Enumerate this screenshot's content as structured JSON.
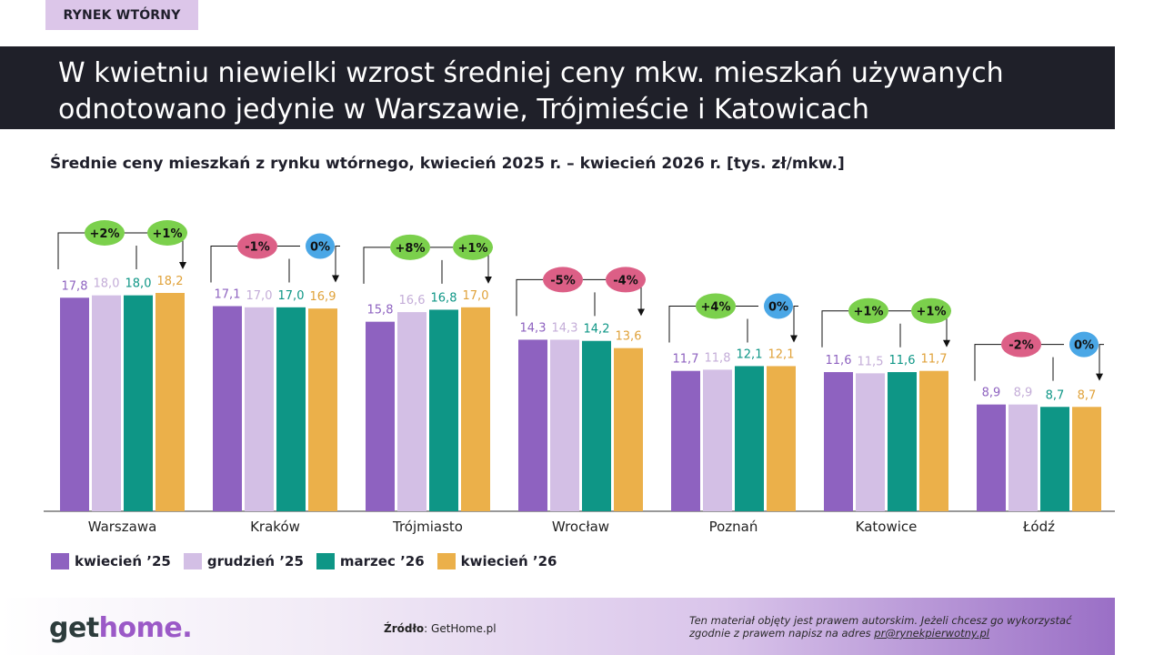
{
  "header": {
    "tag": "RYNEK WTÓRNY",
    "title": "W kwietniu niewielki wzrost średniej ceny mkw. mieszkań używanych odnotowano jedynie w Warszawie, Trójmieście i Katowicach"
  },
  "chart_data": {
    "type": "bar",
    "title": "Średnie ceny mieszkań z rynku wtórnego, kwiecień 2025 r. – kwiecień 2026 r. [tys. zł/mkw.]",
    "xlabel": "",
    "ylabel": "",
    "ylim": [
      0,
      18.2
    ],
    "grid": false,
    "legend_position": "bottom-left",
    "categories": [
      "Warszawa",
      "Kraków",
      "Trójmiasto",
      "Wrocław",
      "Poznań",
      "Katowice",
      "Łódź"
    ],
    "series": [
      {
        "name": "kwiecień ’25",
        "color": "#8e62c0",
        "values": [
          17.8,
          17.1,
          15.8,
          14.3,
          11.7,
          11.6,
          8.9
        ],
        "labels": [
          "17,8",
          "17,1",
          "15,8",
          "14,3",
          "11,7",
          "11,6",
          "8,9"
        ]
      },
      {
        "name": "grudzień ’25",
        "color": "#d3bfe5",
        "values": [
          18.0,
          17.0,
          16.6,
          14.3,
          11.8,
          11.5,
          8.9
        ],
        "labels": [
          "18,0",
          "17,0",
          "16,6",
          "14,3",
          "11,8",
          "11,5",
          "8,9"
        ]
      },
      {
        "name": "marzec ’26",
        "color": "#0e9686",
        "values": [
          18.0,
          17.0,
          16.8,
          14.2,
          12.1,
          11.6,
          8.7
        ],
        "labels": [
          "18,0",
          "17,0",
          "16,8",
          "14,2",
          "12,1",
          "11,6",
          "8,7"
        ]
      },
      {
        "name": "kwiecień ’26",
        "color": "#ebb04a",
        "values": [
          18.2,
          16.9,
          17.0,
          13.6,
          12.1,
          11.7,
          8.7
        ],
        "labels": [
          "18,2",
          "16,9",
          "17,0",
          "13,6",
          "12,1",
          "11,7",
          "8,7"
        ]
      }
    ],
    "annotations": [
      {
        "category": "Warszawa",
        "yoy": "+2%",
        "mom": "+1%"
      },
      {
        "category": "Kraków",
        "yoy": "-1%",
        "mom": "0%"
      },
      {
        "category": "Trójmiasto",
        "yoy": "+8%",
        "mom": "+1%"
      },
      {
        "category": "Wrocław",
        "yoy": "-5%",
        "mom": "-4%"
      },
      {
        "category": "Poznań",
        "yoy": "+4%",
        "mom": "0%"
      },
      {
        "category": "Katowice",
        "yoy": "+1%",
        "mom": "+1%"
      },
      {
        "category": "Łódź",
        "yoy": "-2%",
        "mom": "0%"
      }
    ],
    "bubble_colors": {
      "up": "#7bd04c",
      "down": "#dc5f86",
      "flat": "#4aa7e6"
    }
  },
  "footer": {
    "logo_get": "get",
    "logo_home": "home.",
    "source_label": "Źródło",
    "source_value": ": GetHome.pl",
    "copyright_text": "Ten materiał objęty jest prawem autorskim. Jeżeli chcesz go wykorzystać zgodnie z prawem napisz na adres ",
    "copyright_email": "pr@rynekpierwotny.pl"
  }
}
